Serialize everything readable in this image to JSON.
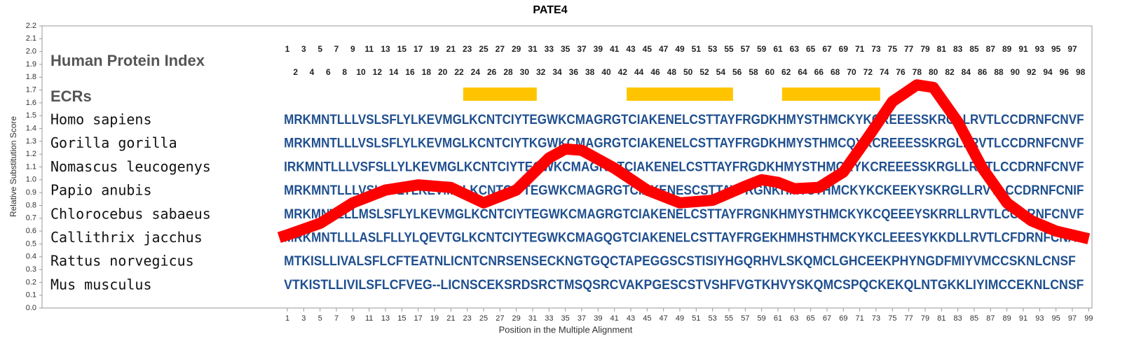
{
  "chart_data": {
    "type": "line",
    "title": "PATE4",
    "x_label": "Position in the Multiple Alignment",
    "y_label": "Relative Substitution Score",
    "xlim": [
      -29,
      99.4
    ],
    "ylim": [
      0,
      2.2
    ],
    "xticks": [
      1,
      3,
      5,
      7,
      9,
      11,
      13,
      15,
      17,
      19,
      21,
      23,
      25,
      27,
      29,
      31,
      33,
      35,
      37,
      39,
      41,
      43,
      45,
      47,
      49,
      51,
      53,
      55,
      57,
      59,
      61,
      63,
      65,
      67,
      69,
      71,
      73,
      75,
      77,
      79,
      81,
      83,
      85,
      87,
      89,
      91,
      93,
      95,
      97,
      99
    ],
    "yticks": [
      {
        "value": 0,
        "label": "0.0"
      },
      0.1,
      0.2,
      0.3,
      0.4,
      0.5,
      0.6,
      0.7,
      0.8,
      0.9,
      {
        "value": 1,
        "label": "1.0"
      },
      1.1,
      1.2,
      1.3,
      1.4,
      1.5,
      1.6,
      1.7,
      1.8,
      1.9,
      {
        "value": 2,
        "label": "2.0"
      },
      2.1,
      2.2
    ],
    "color": "#ff0000",
    "x": [
      0,
      1,
      5,
      9,
      13,
      17,
      21,
      25,
      29,
      33,
      35,
      37,
      41,
      45,
      49,
      53,
      57,
      59,
      61,
      63,
      66,
      69,
      72,
      75,
      78,
      80,
      83,
      86,
      89,
      92,
      95,
      99
    ],
    "values": [
      0.55,
      0.57,
      0.66,
      0.82,
      0.92,
      0.96,
      0.94,
      0.82,
      0.92,
      1.17,
      1.24,
      1.23,
      1.09,
      0.92,
      0.82,
      0.84,
      0.95,
      1.0,
      0.98,
      0.93,
      0.94,
      1.06,
      1.33,
      1.61,
      1.74,
      1.72,
      1.45,
      1.09,
      0.82,
      0.68,
      0.6,
      0.54
    ],
    "index_label": "Human Protein Index",
    "human_protein_index": [
      1,
      2,
      3,
      4,
      5,
      6,
      7,
      8,
      9,
      10,
      11,
      12,
      13,
      14,
      15,
      16,
      17,
      18,
      19,
      20,
      21,
      22,
      23,
      24,
      25,
      26,
      27,
      28,
      29,
      30,
      31,
      32,
      33,
      34,
      35,
      36,
      37,
      38,
      39,
      40,
      41,
      42,
      43,
      44,
      45,
      46,
      47,
      48,
      49,
      50,
      51,
      52,
      53,
      54,
      55,
      56,
      57,
      58,
      59,
      60,
      61,
      62,
      63,
      64,
      65,
      66,
      67,
      68,
      69,
      70,
      71,
      72,
      73,
      74,
      75,
      76,
      77,
      78,
      79,
      80,
      81,
      82,
      83,
      84,
      85,
      86,
      87,
      88,
      89,
      90,
      91,
      92,
      93,
      94,
      95,
      96,
      97,
      98
    ],
    "ecr_label": "ECRs",
    "ecr_color": "#ffc400",
    "ecrs": [
      [
        23,
        31
      ],
      [
        43,
        55
      ],
      [
        62,
        73
      ]
    ],
    "alignment": [
      {
        "species": "Homo sapiens",
        "sequence": "MRKMNTLLLVSLSFLYLKEVMGLKCNTCIYTEGWKCMAGRGTCIAKENELCSTTAYFRGDKHMYSTHMCKYKCREEESSKRGLLRVTLCCDRNFCNVF"
      },
      {
        "species": "Gorilla gorilla",
        "sequence": "MRKMNTLLLVSLSFLYLKEVMGLKCNTCIYTKGWKCMAGRGTCIAKENELCSTTAYFRGDKHMYSTHMCQYKCREEESSKRGLLRVTLCCDRNFCNVF"
      },
      {
        "species": "Nomascus leucogenys",
        "sequence": "IRKMNTLLLVSFSLLYLKEVMGLKCNTCIYTEGWKCMAGRGTCIAKENELCSTTAYFRGDKHMYSTHMCKYKCREEESSKRGLLRVTLCCDRNFCNVF"
      },
      {
        "species": "Papio anubis",
        "sequence": "MRKMNTLLLVSLSFLYLKEVMGLKCNTCIYTEGWKCMAGRGTCIAKENESCSTTAYFRGNKHMYSTHMCKYKCKEEKYSKRGLLRVTLCCDRNFCNIF"
      },
      {
        "species": "Chlorocebus sabaeus",
        "sequence": "MRKMNTLLLMSLSFLYLKEVMGLKCNTCIYTEGWKCMAGRGTCIAKENELCSTTAYFRGNKHMYSTHMCKYKCQEEEYSKRRLLRVTLCCDRNFCNVF"
      },
      {
        "species": "Callithrix jacchus",
        "sequence": "MRKMNTLLLASLFLLYLQEVTGLKCNTCIYTEGWKCMAGQGTCIAKENELCSTTAYFRGEKHMHSTHMCKYKCLEEESYKKDLLRVTLCFDRNFCNAF"
      },
      {
        "species": "Rattus norvegicus",
        "sequence": "MTKISLLIVALSFLCFTEATNLICNTCNRSENSECKNGTGQCTAPEGGSCSTISIYHGQRHVLSKQMCLGHCEEKPHYNGDFMIYVMCCSKNLCNSF"
      },
      {
        "species": "Mus musculus",
        "sequence": "VTKISTLLIVILSFLCFVEG--LICNSCEKSRDSRCTMSQSRCVAKPGESCSTVSHFVGTKHVYSKQMCSPQCKEKQLNTGKKLIYIMCCEKNLCNSF"
      }
    ]
  }
}
